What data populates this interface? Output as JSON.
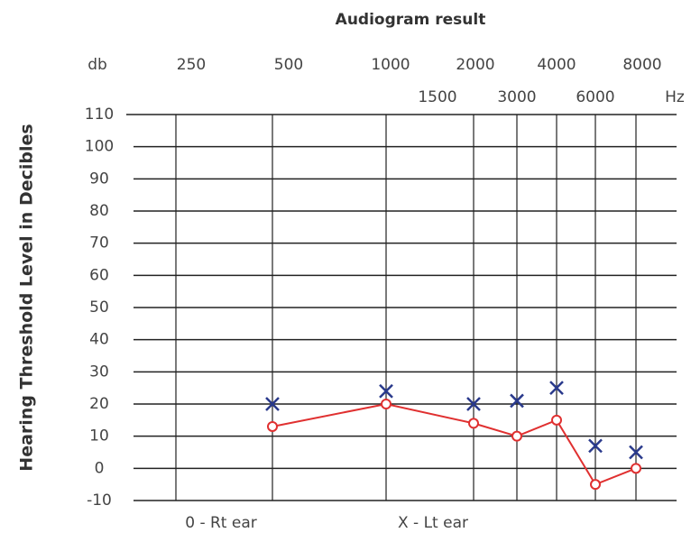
{
  "chart_data": {
    "type": "line",
    "title": "Audiogram result",
    "y_label": "Hearing Threshold Level in Decibles",
    "y_unit": "db",
    "x_unit": "Hz",
    "x": [
      500,
      1000,
      2000,
      3000,
      4000,
      6000,
      8000
    ],
    "xticks": [
      250,
      500,
      1000,
      1500,
      2000,
      3000,
      4000,
      6000,
      8000
    ],
    "ylim": [
      -10,
      110
    ],
    "yticks": [
      -10,
      0,
      10,
      20,
      30,
      40,
      50,
      60,
      70,
      80,
      90,
      100,
      110
    ],
    "grid": true,
    "series": [
      {
        "name": "0 - Rt ear",
        "color": "#e03030",
        "marker": "o",
        "line": true,
        "values": [
          13,
          20,
          14,
          10,
          15,
          -5,
          0
        ]
      },
      {
        "name": "X - Lt ear",
        "color": "#2a3a8c",
        "marker": "x",
        "line": false,
        "values": [
          20,
          24,
          20,
          21,
          25,
          7,
          5
        ]
      }
    ]
  }
}
